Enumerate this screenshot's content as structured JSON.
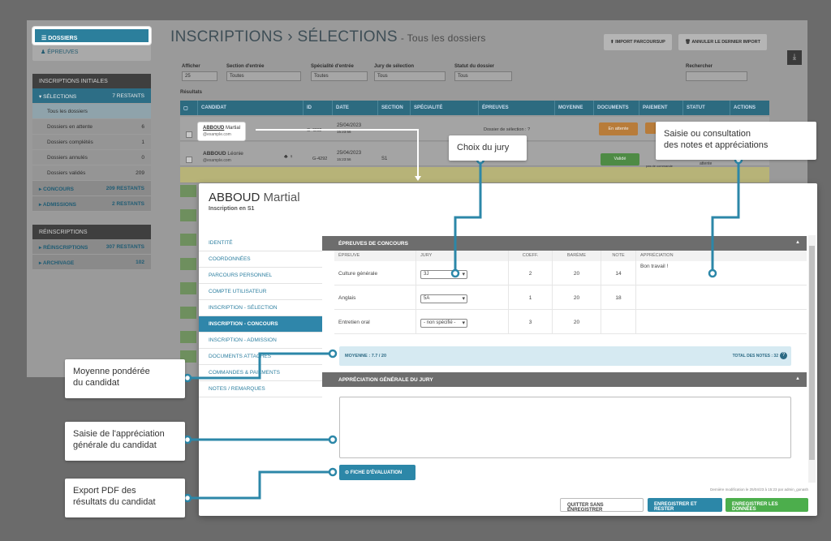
{
  "sidebar": {
    "dossiers_label": "DOSSIERS",
    "epreuves_label": "ÉPREUVES",
    "initial_head": "INSCRIPTIONS INITIALES",
    "selections": {
      "label": "SÉLECTIONS",
      "count": "7 RESTANTS"
    },
    "sub_items": [
      {
        "label": "Tous les dossiers",
        "count": ""
      },
      {
        "label": "Dossiers en attente",
        "count": "6"
      },
      {
        "label": "Dossiers complétés",
        "count": "1"
      },
      {
        "label": "Dossiers annulés",
        "count": "0"
      },
      {
        "label": "Dossiers validés",
        "count": "209"
      }
    ],
    "concours": {
      "label": "CONCOURS",
      "count": "209 RESTANTS"
    },
    "admissions": {
      "label": "ADMISSIONS",
      "count": "2 RESTANTS"
    },
    "reinscr_head": "RÉINSCRIPTIONS",
    "reinscriptions": {
      "label": "RÉINSCRIPTIONS",
      "count": "307 RESTANTS"
    },
    "archivage": {
      "label": "ARCHIVAGE",
      "count": "102"
    }
  },
  "header": {
    "title": "INSCRIPTIONS › SÉLECTIONS",
    "subtitle": "- Tous les dossiers",
    "import_btn": "IMPORT PARCOURSUP",
    "cancel_import_btn": "ANNULER LE DERNIER IMPORT"
  },
  "filters": [
    {
      "label": "Afficher",
      "value": "25"
    },
    {
      "label": "Section d'entrée",
      "value": "Toutes"
    },
    {
      "label": "Spécialité d'entrée",
      "value": "Toutes"
    },
    {
      "label": "Jury de sélection",
      "value": "Tous"
    },
    {
      "label": "Statut du dossier",
      "value": "Tous"
    }
  ],
  "search_label": "Rechercher",
  "results_label": "Résultats",
  "table_headers": [
    "CANDIDAT",
    "ID",
    "DATE",
    "SECTION",
    "SPÉCIALITÉ",
    "ÉPREUVES",
    "MOYENNE",
    "DOCUMENTS",
    "PAIEMENT",
    "STATUT",
    "ACTIONS"
  ],
  "rows": [
    {
      "name": "ABBOUD",
      "first": "Martial",
      "email": "@example.com",
      "id": "G-4292",
      "date": "25/04/2023",
      "time": "15:23:56",
      "epreuves": "Dossier de sélection : ?",
      "doc": "En attente"
    },
    {
      "name": "ABBOUD",
      "first": "Léonie",
      "email": "@example.com",
      "id": "G-4292",
      "date": "25/04/2023",
      "time": "15:23:56",
      "section": "S1",
      "doc": "Validé",
      "pay": "pas de commande",
      "status": "attente"
    }
  ],
  "dialog": {
    "last_name": "ABBOUD",
    "first_name": "Martial",
    "subtitle": "Inscription en S1",
    "nav": [
      "IDENTITÉ",
      "COORDONNÉES",
      "PARCOURS PERSONNEL",
      "COMPTE UTILISATEUR",
      "INSCRIPTION - SÉLECTION",
      "INSCRIPTION - CONCOURS",
      "INSCRIPTION - ADMISSION",
      "DOCUMENTS ATTACHÉS",
      "COMMANDES & PAIEMENTS",
      "NOTES / REMARQUES"
    ],
    "exams_title": "ÉPREUVES DE CONCOURS",
    "exam_headers": [
      "ÉPREUVE",
      "JURY",
      "COEFF.",
      "BARÈME",
      "NOTE",
      "APPRÉCIATION"
    ],
    "exams": [
      {
        "name": "Culture générale",
        "jury": "3J",
        "coeff": "2",
        "bareme": "20",
        "note": "14",
        "appreciation": "Bon travail !"
      },
      {
        "name": "Anglais",
        "jury": "5A",
        "coeff": "1",
        "bareme": "20",
        "note": "18",
        "appreciation": ""
      },
      {
        "name": "Entretien oral",
        "jury": "- non spécifié -",
        "coeff": "3",
        "bareme": "20",
        "note": "",
        "appreciation": ""
      }
    ],
    "average": "MOYENNE : 7.7 / 20",
    "total": "TOTAL DES NOTES : 32",
    "jury_title": "APPRÉCIATION GÉNÉRALE DU JURY",
    "fiche_btn": "FICHE D'ÉVALUATION",
    "last_modified": "Dernière modification le 25/04/23 à 15:23 par admin_gonash",
    "btn_quit": "QUITTER SANS ENREGISTRER",
    "btn_save_stay": "ENREGISTRER ET RESTER",
    "btn_save": "ENREGISTRER LES DONNÉES"
  },
  "callouts": {
    "jury": "Choix du jury",
    "notes_line1": "Saisie ou consultation",
    "notes_line2": "des notes et appréciations",
    "moyenne_line1": "Moyenne pondérée",
    "moyenne_line2": "du candidat",
    "appreciation_line1": "Saisie de l'appréciation",
    "appreciation_line2": "générale du candidat",
    "pdf_line1": "Export PDF des",
    "pdf_line2": "résultats du candidat"
  },
  "colors": {
    "accent": "#2c87a8",
    "green": "#4cae4c",
    "callout_line": "#2c87a8"
  }
}
